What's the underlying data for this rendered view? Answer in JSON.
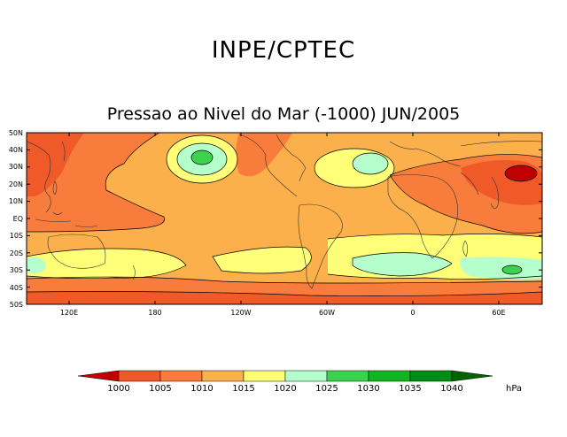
{
  "header": {
    "org": "INPE/CPTEC",
    "title": "Pressao ao Nivel do Mar (-1000) JUN/2005"
  },
  "map": {
    "lat_labels": [
      "50N",
      "40N",
      "30N",
      "20N",
      "10N",
      "EQ",
      "10S",
      "20S",
      "30S",
      "40S",
      "50S"
    ],
    "lon_labels": [
      "120E",
      "180",
      "120W",
      "60W",
      "0",
      "60E"
    ]
  },
  "legend": {
    "levels": [
      "1000",
      "1005",
      "1010",
      "1015",
      "1020",
      "1025",
      "1030",
      "1035",
      "1040"
    ],
    "colors": [
      "#c00000",
      "#f05a28",
      "#f87d3c",
      "#fcb04c",
      "#ffff78",
      "#b4ffcc",
      "#3cd24e",
      "#14b41e",
      "#008c14",
      "#006400"
    ],
    "unit": "hPa"
  }
}
